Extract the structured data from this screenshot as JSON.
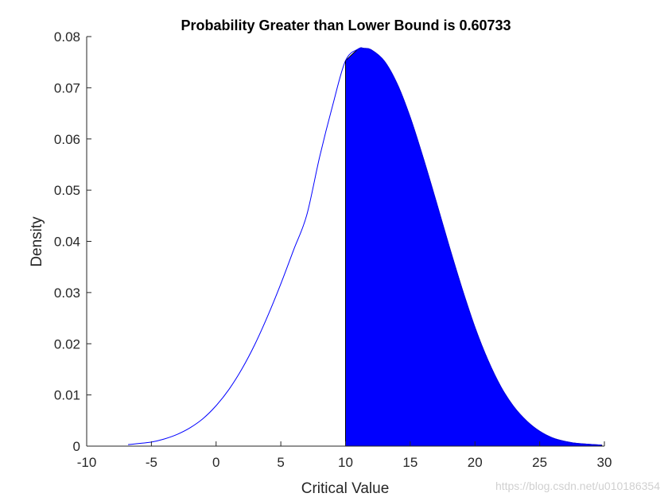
{
  "chart_data": {
    "type": "area",
    "title": "Probability Greater than Lower Bound is 0.60733",
    "xlabel": "Critical Value",
    "ylabel": "Density",
    "xlim": [
      -10,
      30
    ],
    "ylim": [
      0,
      0.08
    ],
    "x_ticks": [
      -10,
      -5,
      0,
      5,
      10,
      15,
      20,
      25,
      30
    ],
    "x_tick_labels": [
      "-10",
      "-5",
      "0",
      "5",
      "10",
      "15",
      "20",
      "25",
      "30"
    ],
    "y_ticks": [
      0,
      0.01,
      0.02,
      0.03,
      0.04,
      0.05,
      0.06,
      0.07,
      0.08
    ],
    "y_tick_labels": [
      "0",
      "0.01",
      "0.02",
      "0.03",
      "0.04",
      "0.05",
      "0.06",
      "0.07",
      "0.08"
    ],
    "grid": false,
    "legend": "none",
    "curve": {
      "x": [
        -6.8,
        -5,
        -4,
        -3,
        -2,
        -1,
        0,
        1,
        2,
        3,
        4,
        5,
        6,
        7,
        8,
        9,
        10,
        11,
        11.4,
        12,
        13,
        14,
        15,
        16,
        17,
        18,
        19,
        20,
        21,
        22,
        23,
        24,
        25,
        26,
        27,
        28,
        29.8
      ],
      "y": [
        0.0003,
        0.0008,
        0.0014,
        0.0023,
        0.0036,
        0.0054,
        0.0079,
        0.0111,
        0.0151,
        0.0199,
        0.0255,
        0.0317,
        0.0384,
        0.0451,
        0.0565,
        0.0665,
        0.0753,
        0.0776,
        0.0777,
        0.0774,
        0.0752,
        0.0707,
        0.0642,
        0.0563,
        0.0478,
        0.0391,
        0.0308,
        0.0232,
        0.0168,
        0.0116,
        0.0077,
        0.0049,
        0.0029,
        0.0016,
        0.0009,
        0.0005,
        0.0002
      ],
      "color": "#0000ff"
    },
    "shaded_region": {
      "lower_bound": 10,
      "probability": 0.60733,
      "fill_color": "#0000ff",
      "edge_color": "#000000"
    }
  },
  "watermark": "https://blog.csdn.net/u010186354"
}
